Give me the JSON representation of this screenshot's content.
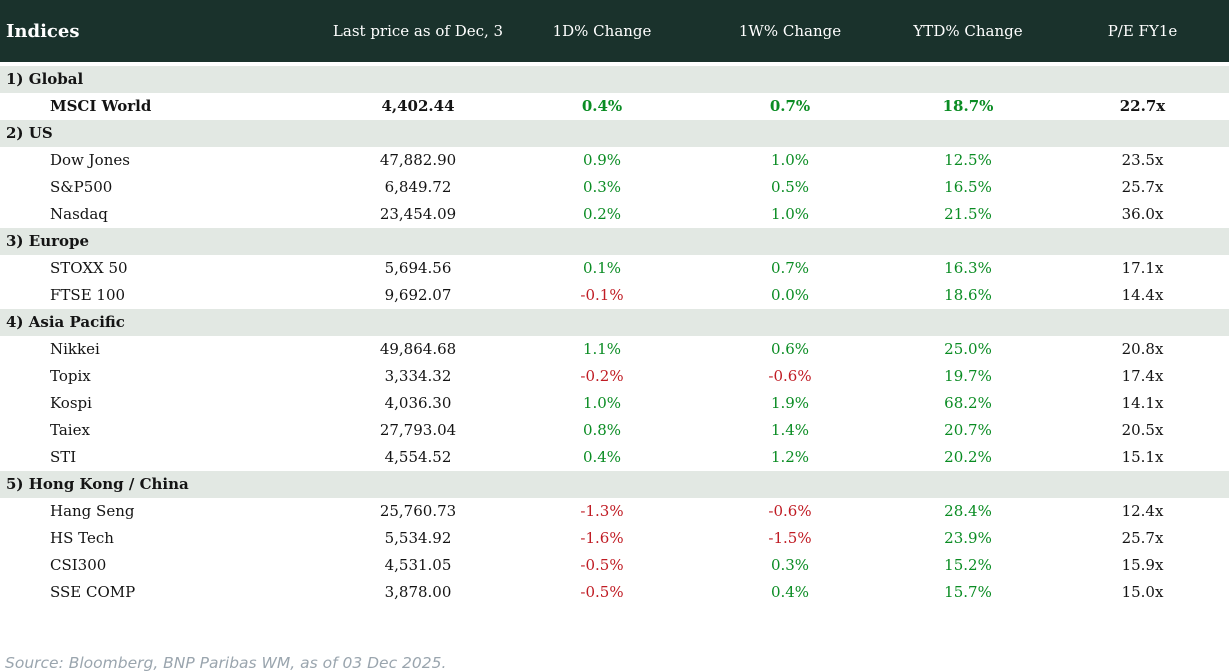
{
  "colors": {
    "header_bg": "#1a322c",
    "header_text": "#ffffff",
    "section_bg": "#e2e8e3",
    "positive": "#0a8c23",
    "negative": "#c01c24",
    "muted": "#9aa5ae"
  },
  "footer": {
    "source": "Source: Bloomberg, BNP Paribas WM, as of 03 Dec 2025."
  },
  "chart_data": {
    "type": "table",
    "title": "Indices",
    "columns": [
      "Indices",
      "Last price as of Dec, 3",
      "1D% Change",
      "1W% Change",
      "YTD% Change",
      "P/E FY1e"
    ],
    "sections": [
      {
        "label": "1) Global",
        "rows": [
          {
            "name": "MSCI World",
            "price": "4,402.44",
            "d1": "0.4%",
            "w1": "0.7%",
            "ytd": "18.7%",
            "pe": "22.7x",
            "bold": true
          }
        ]
      },
      {
        "label": "2) US",
        "rows": [
          {
            "name": "Dow Jones",
            "price": "47,882.90",
            "d1": "0.9%",
            "w1": "1.0%",
            "ytd": "12.5%",
            "pe": "23.5x"
          },
          {
            "name": "S&P500",
            "price": "6,849.72",
            "d1": "0.3%",
            "w1": "0.5%",
            "ytd": "16.5%",
            "pe": "25.7x"
          },
          {
            "name": "Nasdaq",
            "price": "23,454.09",
            "d1": "0.2%",
            "w1": "1.0%",
            "ytd": "21.5%",
            "pe": "36.0x"
          }
        ]
      },
      {
        "label": "3) Europe",
        "rows": [
          {
            "name": "STOXX 50",
            "price": "5,694.56",
            "d1": "0.1%",
            "w1": "0.7%",
            "ytd": "16.3%",
            "pe": "17.1x"
          },
          {
            "name": "FTSE 100",
            "price": "9,692.07",
            "d1": "-0.1%",
            "w1": "0.0%",
            "ytd": "18.6%",
            "pe": "14.4x"
          }
        ]
      },
      {
        "label": "4) Asia Pacific",
        "rows": [
          {
            "name": "Nikkei",
            "price": "49,864.68",
            "d1": "1.1%",
            "w1": "0.6%",
            "ytd": "25.0%",
            "pe": "20.8x"
          },
          {
            "name": "Topix",
            "price": "3,334.32",
            "d1": "-0.2%",
            "w1": "-0.6%",
            "ytd": "19.7%",
            "pe": "17.4x"
          },
          {
            "name": "Kospi",
            "price": "4,036.30",
            "d1": "1.0%",
            "w1": "1.9%",
            "ytd": "68.2%",
            "pe": "14.1x"
          },
          {
            "name": "Taiex",
            "price": "27,793.04",
            "d1": "0.8%",
            "w1": "1.4%",
            "ytd": "20.7%",
            "pe": "20.5x"
          },
          {
            "name": "STI",
            "price": "4,554.52",
            "d1": "0.4%",
            "w1": "1.2%",
            "ytd": "20.2%",
            "pe": "15.1x"
          }
        ]
      },
      {
        "label": "5) Hong Kong / China",
        "rows": [
          {
            "name": "Hang Seng",
            "price": "25,760.73",
            "d1": "-1.3%",
            "w1": "-0.6%",
            "ytd": "28.4%",
            "pe": "12.4x"
          },
          {
            "name": "HS Tech",
            "price": "5,534.92",
            "d1": "-1.6%",
            "w1": "-1.5%",
            "ytd": "23.9%",
            "pe": "25.7x"
          },
          {
            "name": "CSI300",
            "price": "4,531.05",
            "d1": "-0.5%",
            "w1": "0.3%",
            "ytd": "15.2%",
            "pe": "15.9x"
          },
          {
            "name": "SSE COMP",
            "price": "3,878.00",
            "d1": "-0.5%",
            "w1": "0.4%",
            "ytd": "15.7%",
            "pe": "15.0x"
          }
        ]
      }
    ]
  }
}
